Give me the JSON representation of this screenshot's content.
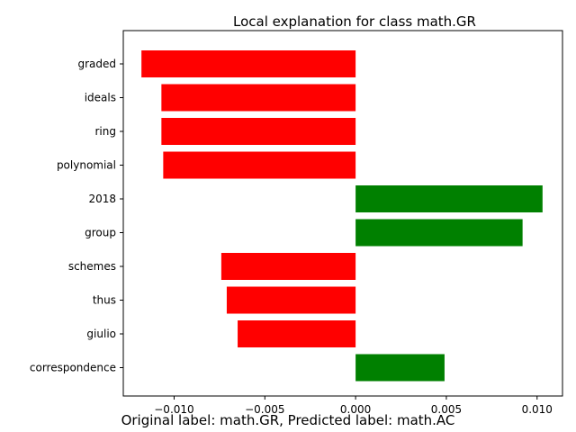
{
  "chart_data": {
    "type": "bar",
    "orientation": "horizontal",
    "title": "Local explanation for class math.GR",
    "categories": [
      "graded",
      "ideals",
      "ring",
      "polynomial",
      "2018",
      "group",
      "schemes",
      "thus",
      "giulio",
      "correspondence"
    ],
    "values": [
      -0.0118,
      -0.0107,
      -0.0107,
      -0.0106,
      0.0103,
      0.0092,
      -0.0074,
      -0.0071,
      -0.0065,
      0.0049
    ],
    "xlim": [
      -0.0128,
      0.0114
    ],
    "xticks": [
      -0.01,
      -0.005,
      0.0,
      0.005,
      0.01
    ],
    "xtick_labels": [
      "−0.010",
      "−0.005",
      "0.000",
      "0.005",
      "0.010"
    ],
    "positive_color": "#008000",
    "negative_color": "#ff0000",
    "grid": false
  },
  "caption": "Original label: math.GR, Predicted label: math.AC"
}
